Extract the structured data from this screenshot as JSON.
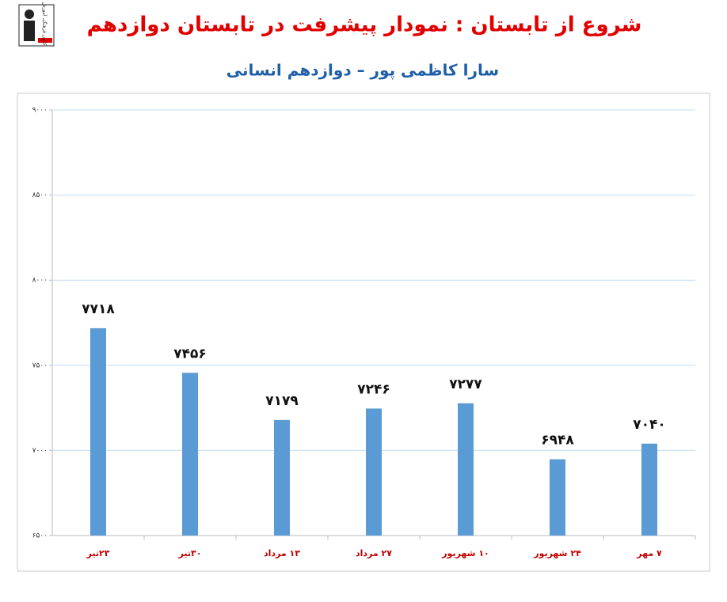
{
  "logo_text": "کانون فرهنگی آموزش",
  "chart_data": {
    "type": "bar",
    "title": "شروع از تابستان : نمودار پیشرفت در تابستان دوازدهم",
    "subtitle": "سارا کاظمی پور – دوازدهم انسانی",
    "categories": [
      "۲۳تیر",
      "۳۰تیر",
      "۱۳ مرداد",
      "۲۷ مرداد",
      "۱۰ شهریور",
      "۲۴ شهریور",
      "۷ مهر"
    ],
    "values": [
      7718,
      7456,
      7179,
      7246,
      7277,
      6948,
      7040
    ],
    "value_labels": [
      "۷۷۱۸",
      "۷۴۵۶",
      "۷۱۷۹",
      "۷۲۴۶",
      "۷۲۷۷",
      "۶۹۴۸",
      "۷۰۴۰"
    ],
    "color": "#5b9bd5",
    "ylim": [
      6500,
      9000
    ],
    "yticks": [
      {
        "value": 6500,
        "label": "۶۵۰۰"
      },
      {
        "value": 7000,
        "label": "۷۰۰۰"
      },
      {
        "value": 7500,
        "label": "۷۵۰۰"
      },
      {
        "value": 8000,
        "label": "۸۰۰۰"
      },
      {
        "value": 8500,
        "label": "۸۵۰۰"
      },
      {
        "value": 9000,
        "label": "۹۰۰۰"
      }
    ],
    "grid": true
  }
}
